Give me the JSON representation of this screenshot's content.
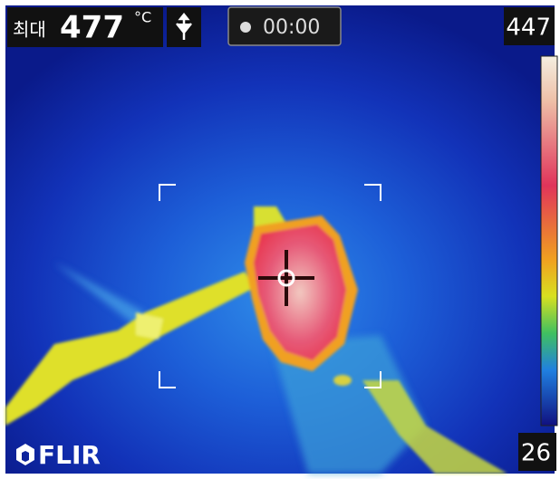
{
  "header": {
    "label": "최대",
    "value": 477,
    "unit": "°C",
    "timer": "00:00"
  },
  "scale": {
    "max": 447,
    "min": 26
  },
  "logo": "FLIR"
}
